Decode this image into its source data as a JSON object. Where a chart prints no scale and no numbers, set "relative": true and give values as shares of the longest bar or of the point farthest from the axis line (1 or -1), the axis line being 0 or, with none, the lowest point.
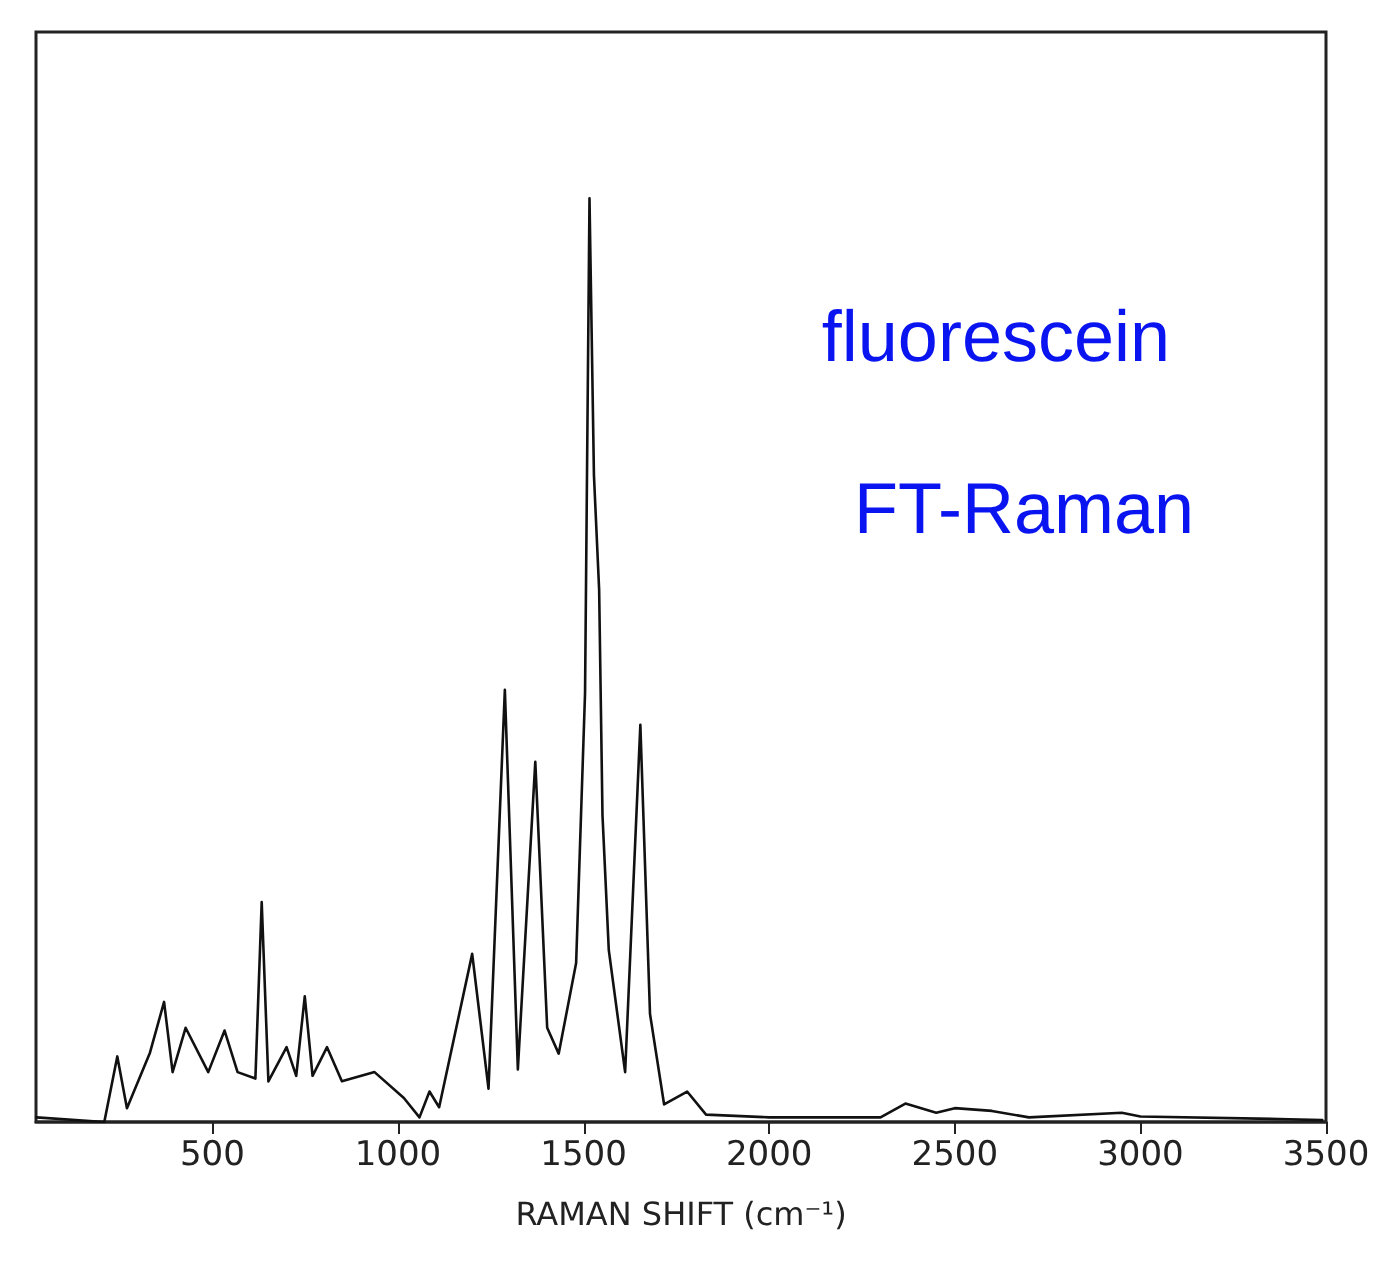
{
  "chart_data": {
    "type": "line",
    "relative": true,
    "xlabel": "RAMAN SHIFT (cm⁻¹)",
    "annotations": [
      "fluorescein",
      "FT-Raman"
    ],
    "x": [
      26,
      209,
      244,
      270,
      332,
      370,
      393,
      428,
      489,
      533,
      568,
      616,
      633,
      651,
      700,
      726,
      749,
      770,
      809,
      849,
      937,
      1016,
      1058,
      1085,
      1111,
      1200,
      1244,
      1288,
      1323,
      1370,
      1402,
      1433,
      1480,
      1504,
      1516,
      1528,
      1542,
      1551,
      1568,
      1612,
      1653,
      1679,
      1717,
      1779,
      1830,
      2000,
      2300,
      2367,
      2450,
      2500,
      2600,
      2700,
      2950,
      3000,
      3400,
      3490
    ],
    "values": [
      0.005,
      0,
      0.071,
      0.015,
      0.075,
      0.13,
      0.054,
      0.102,
      0.054,
      0.099,
      0.054,
      0.047,
      0.238,
      0.044,
      0.081,
      0.05,
      0.136,
      0.05,
      0.081,
      0.044,
      0.054,
      0.026,
      0.005,
      0.033,
      0.016,
      0.182,
      0.036,
      0.468,
      0.057,
      0.39,
      0.102,
      0.074,
      0.172,
      0.464,
      1,
      0.7,
      0.576,
      0.332,
      0.186,
      0.054,
      0.43,
      0.117,
      0.019,
      0.033,
      0.008,
      0.005,
      0.005,
      0.02,
      0.01,
      0.015,
      0.012,
      0.005,
      0.01,
      0.006,
      0.003,
      0.002
    ],
    "color": "#111111",
    "xlim": [
      25,
      3500
    ],
    "xticks": [
      500,
      1000,
      1500,
      2000,
      2500,
      3000,
      3500
    ],
    "tick_labels": "x",
    "grid": false,
    "marker": "none",
    "line_style": "solid"
  }
}
